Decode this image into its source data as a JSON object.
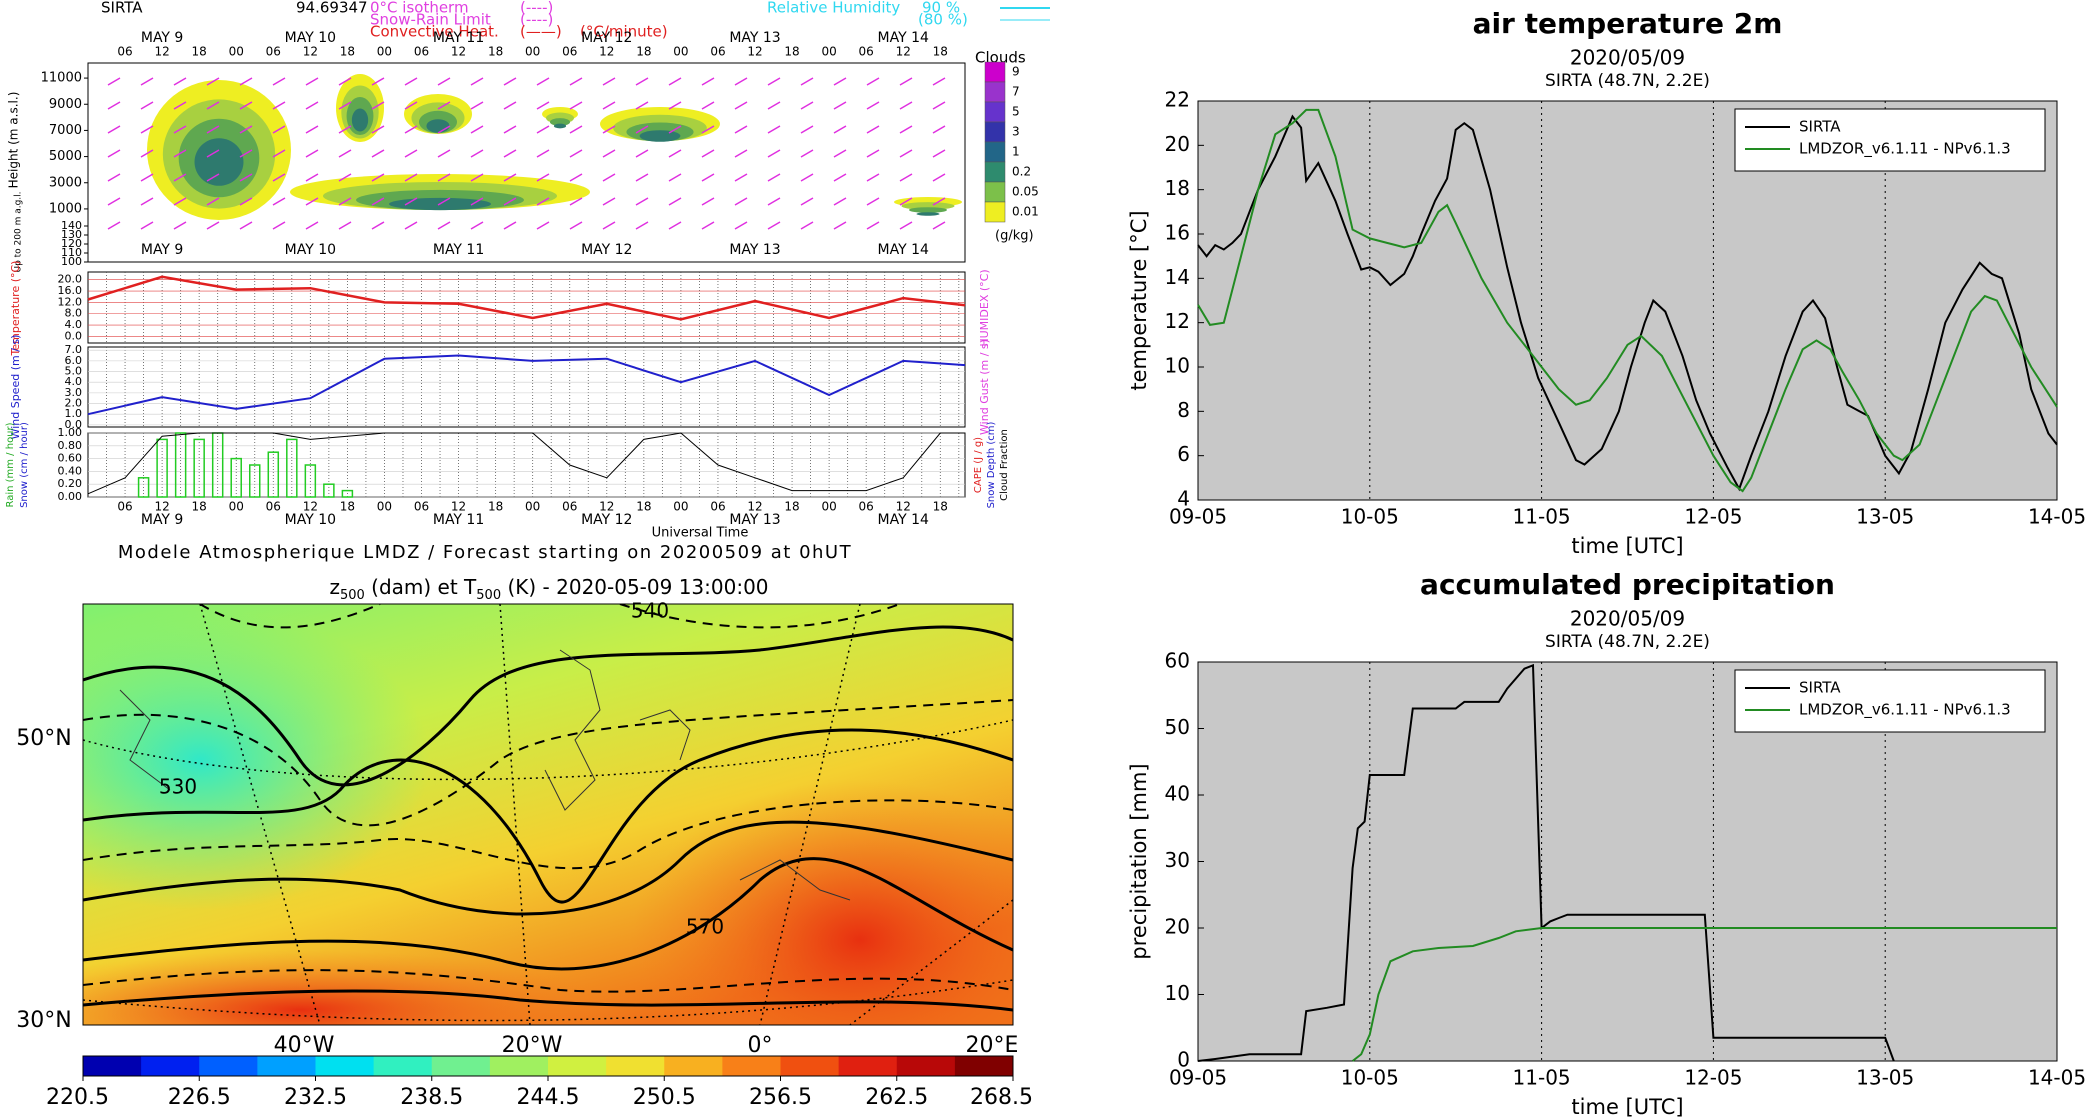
{
  "meteogram": {
    "station": "SIRTA",
    "code": "94.69347",
    "legend": [
      "0°C isotherm",
      "Snow-Rain Limit",
      "Convective Heat."
    ],
    "legend_marks": [
      "(----)",
      "(----)",
      "(——)"
    ],
    "legend_unit": "(°C/minute)",
    "humidity": "Relative Humidity",
    "humidity_levels": [
      "90 %",
      "(80 %)"
    ],
    "days": [
      "MAY 9",
      "MAY 10",
      "MAY 11",
      "MAY 12",
      "MAY 13",
      "MAY 14"
    ],
    "hours": [
      "06",
      "12",
      "18",
      "00"
    ],
    "xlim": [
      0,
      142
    ],
    "height_label": "Height (m a.s.l.)",
    "low_label": "Up to 200 m a.g.l.",
    "height_lim": [
      0,
      12000
    ],
    "height_ticks": [
      11000,
      9000,
      7000,
      5000,
      3000,
      1000
    ],
    "low_lim": [
      100,
      140
    ],
    "low_ticks": [
      140,
      130,
      120,
      110,
      100
    ],
    "clouds_title": "Clouds",
    "clouds_unit": "(g/kg)",
    "cloud_levels": [
      "9",
      "7",
      "5",
      "3",
      "1",
      "0.2",
      "0.05",
      "0.01"
    ],
    "cloud_colors": [
      "#cc00cc",
      "#9933cc",
      "#6633cc",
      "#3333aa",
      "#226688",
      "#2e8b6e",
      "#7cc04a",
      "#eeee22"
    ],
    "temperature": {
      "label": "Temperature (°C)",
      "label2": "HUMIDEX (°C)",
      "color": "#e02020",
      "ylim": [
        -2.3,
        22.7
      ],
      "yticks": [
        {
          "value": 0,
          "label": "0.0"
        },
        {
          "value": 4,
          "label": "4.0"
        },
        {
          "value": 8,
          "label": "8.0"
        },
        {
          "value": 12,
          "label": "12.0"
        },
        {
          "value": 16,
          "label": "16.0"
        },
        {
          "value": 20,
          "label": "20.0"
        }
      ],
      "x": [
        0,
        12,
        24,
        36,
        48,
        60,
        72,
        84,
        96,
        108,
        120,
        132,
        142
      ],
      "values": [
        13,
        21,
        16.5,
        17,
        12,
        11.5,
        6.5,
        11.5,
        6,
        12.5,
        6.5,
        13.5,
        11
      ]
    },
    "wind": {
      "label": "Wind Speed (m / s)",
      "label2": "Wind Gust (m / s)",
      "color": "#2020cc",
      "ylim": [
        -0.2,
        7.3
      ],
      "yticks": [
        {
          "value": 0,
          "label": "0.0"
        },
        {
          "value": 1,
          "label": "1.0"
        },
        {
          "value": 2,
          "label": "2.0"
        },
        {
          "value": 3,
          "label": "3.0"
        },
        {
          "value": 4,
          "label": "4.0"
        },
        {
          "value": 5,
          "label": "5.0"
        },
        {
          "value": 6,
          "label": "6.0"
        },
        {
          "value": 7,
          "label": "7.0"
        }
      ],
      "x": [
        0,
        12,
        24,
        36,
        48,
        60,
        72,
        84,
        96,
        108,
        120,
        132,
        142
      ],
      "values": [
        1,
        2.6,
        1.5,
        2.5,
        6.2,
        6.5,
        6,
        6.2,
        4,
        6,
        2.8,
        6,
        5.6
      ]
    },
    "precip": {
      "label": "Rain (mm / hour)",
      "label2": "Snow (cm / hour)",
      "label3": "CAPE (J / g)",
      "label4": "Snow Depth (cm)",
      "label5": "Cloud Fraction",
      "ylim": [
        0,
        1
      ],
      "yticks": [
        {
          "value": 0,
          "label": "0.00"
        },
        {
          "value": 0.2,
          "label": "0.20"
        },
        {
          "value": 0.4,
          "label": "0.40"
        },
        {
          "value": 0.6,
          "label": "0.60"
        },
        {
          "value": 0.8,
          "label": "0.80"
        },
        {
          "value": 1,
          "label": "1.00"
        }
      ],
      "rain_color": "#22cc22",
      "rain_x": [
        9,
        12,
        15,
        18,
        21,
        24,
        27,
        30,
        33,
        36,
        39,
        42
      ],
      "rain": [
        0.3,
        0.9,
        1,
        0.9,
        1,
        0.6,
        0.5,
        0.7,
        0.9,
        0.5,
        0.2,
        0.1
      ],
      "cloud_x": [
        0,
        6,
        12,
        18,
        24,
        30,
        36,
        42,
        48,
        54,
        60,
        66,
        72,
        78,
        84,
        90,
        96,
        102,
        108,
        114,
        120,
        126,
        132,
        138,
        142
      ],
      "cloud": [
        0.05,
        0.3,
        0.95,
        1,
        1,
        1,
        0.9,
        0.95,
        1,
        1,
        1,
        1,
        1,
        0.5,
        0.3,
        0.9,
        1,
        0.5,
        0.3,
        0.1,
        0.1,
        0.1,
        0.3,
        1,
        1
      ]
    },
    "xlabel": "Universal Time",
    "footer": "Modele Atmospherique LMDZ / Forecast starting on 20200509 at 0hUT"
  },
  "map": {
    "title": [
      "z",
      "500",
      " (dam) et T",
      "500",
      " (K) - 2020-05-09 13:00:00"
    ],
    "lat_labels": [
      "50°N",
      "30°N"
    ],
    "lon_labels": [
      "40°W",
      "20°W",
      "0°",
      "20°E"
    ],
    "contour_labels": [
      "540",
      "530",
      "570"
    ],
    "clim": [
      220.5,
      268.5
    ],
    "cticks": [
      220.5,
      226.5,
      232.5,
      238.5,
      244.5,
      250.5,
      256.5,
      262.5,
      268.5
    ],
    "colors": [
      "#0000b0",
      "#0020f0",
      "#0060ff",
      "#00a0ff",
      "#00e0f0",
      "#30f0c0",
      "#70f090",
      "#a0f060",
      "#d0f040",
      "#f0e030",
      "#f8b020",
      "#f88018",
      "#f05010",
      "#e02010",
      "#b80808",
      "#800000"
    ]
  },
  "chart_data": [
    {
      "type": "line",
      "title": "air temperature 2m",
      "subtitle": "2020/05/09",
      "location": "SIRTA (48.7N, 2.2E)",
      "xlabel": "time [UTC]",
      "ylabel": "temperature [°C]",
      "xlim": [
        0,
        5
      ],
      "xticks": [
        {
          "value": 0,
          "label": "09-05"
        },
        {
          "value": 1,
          "label": "10-05"
        },
        {
          "value": 2,
          "label": "11-05"
        },
        {
          "value": 3,
          "label": "12-05"
        },
        {
          "value": 4,
          "label": "13-05"
        },
        {
          "value": 5,
          "label": "14-05"
        }
      ],
      "ylim": [
        4,
        22
      ],
      "yticks": [
        4,
        6,
        8,
        10,
        12,
        14,
        16,
        18,
        20,
        22
      ],
      "grid": "x",
      "legend": "upper right",
      "background": "#c8c8c8",
      "series": [
        {
          "name": "SIRTA",
          "color": "#000000",
          "x": [
            0,
            0.05,
            0.1,
            0.15,
            0.2,
            0.25,
            0.35,
            0.45,
            0.55,
            0.6,
            0.63,
            0.7,
            0.8,
            0.87,
            0.95,
            1.0,
            1.05,
            1.12,
            1.2,
            1.25,
            1.3,
            1.38,
            1.45,
            1.5,
            1.55,
            1.6,
            1.7,
            1.8,
            1.88,
            1.98,
            2.1,
            2.2,
            2.25,
            2.35,
            2.45,
            2.52,
            2.6,
            2.65,
            2.72,
            2.82,
            2.9,
            2.98,
            3.08,
            3.15,
            3.22,
            3.32,
            3.42,
            3.52,
            3.58,
            3.65,
            3.72,
            3.78,
            3.85,
            3.9,
            4.0,
            4.08,
            4.15,
            4.25,
            4.35,
            4.45,
            4.55,
            4.62,
            4.68,
            4.78,
            4.85,
            4.95,
            5.0
          ],
          "values": [
            15.5,
            15,
            15.5,
            15.3,
            15.6,
            16,
            18,
            19.5,
            21.3,
            20.8,
            18.4,
            19.2,
            17.5,
            16,
            14.4,
            14.5,
            14.3,
            13.7,
            14.2,
            15,
            16,
            17.5,
            18.5,
            20.7,
            21,
            20.7,
            18,
            14.5,
            12,
            9.5,
            7.5,
            5.8,
            5.6,
            6.3,
            8,
            10,
            12,
            13,
            12.5,
            10.5,
            8.5,
            7,
            5.5,
            4.5,
            6,
            8,
            10.5,
            12.5,
            13,
            12.2,
            10,
            8.3,
            8,
            7.8,
            6,
            5.2,
            6.2,
            9,
            12,
            13.5,
            14.7,
            14.2,
            14,
            11.5,
            9,
            7,
            6.5
          ]
        },
        {
          "name": "LMDZOR_v6.1.11 - NPv6.1.3",
          "color": "#228b22",
          "x": [
            0,
            0.07,
            0.15,
            0.25,
            0.35,
            0.45,
            0.55,
            0.63,
            0.7,
            0.8,
            0.9,
            1.0,
            1.1,
            1.2,
            1.3,
            1.4,
            1.45,
            1.5,
            1.65,
            1.8,
            1.9,
            2.0,
            2.1,
            2.2,
            2.28,
            2.38,
            2.5,
            2.58,
            2.7,
            2.8,
            2.9,
            3.0,
            3.1,
            3.17,
            3.22,
            3.32,
            3.42,
            3.52,
            3.6,
            3.68,
            3.75,
            3.85,
            3.95,
            4.05,
            4.1,
            4.2,
            4.3,
            4.4,
            4.5,
            4.58,
            4.65,
            4.75,
            4.85,
            5.0
          ],
          "values": [
            12.8,
            11.9,
            12,
            15,
            18,
            20.5,
            21,
            21.6,
            21.6,
            19.5,
            16.2,
            15.8,
            15.6,
            15.4,
            15.6,
            17,
            17.3,
            16.5,
            14,
            12,
            11,
            10,
            9,
            8.3,
            8.5,
            9.5,
            11,
            11.4,
            10.5,
            9,
            7.5,
            6,
            4.8,
            4.4,
            5,
            7,
            9,
            10.8,
            11.2,
            10.8,
            9.8,
            8.5,
            7,
            6,
            5.8,
            6.5,
            8.5,
            10.5,
            12.5,
            13.2,
            13,
            11.5,
            10,
            8.2
          ]
        }
      ]
    },
    {
      "type": "line",
      "title": "accumulated precipitation",
      "subtitle": "2020/05/09",
      "location": "SIRTA (48.7N, 2.2E)",
      "xlabel": "time [UTC]",
      "ylabel": "precipitation [mm]",
      "xlim": [
        0,
        5
      ],
      "xticks": [
        {
          "value": 0,
          "label": "09-05"
        },
        {
          "value": 1,
          "label": "10-05"
        },
        {
          "value": 2,
          "label": "11-05"
        },
        {
          "value": 3,
          "label": "12-05"
        },
        {
          "value": 4,
          "label": "13-05"
        },
        {
          "value": 5,
          "label": "14-05"
        }
      ],
      "ylim": [
        0,
        60
      ],
      "yticks": [
        0,
        10,
        20,
        30,
        40,
        50,
        60
      ],
      "grid": "x",
      "legend": "upper right",
      "background": "#c8c8c8",
      "series": [
        {
          "name": "SIRTA",
          "color": "#000000",
          "x": [
            0,
            0.1,
            0.3,
            0.6,
            0.63,
            0.75,
            0.85,
            0.9,
            0.93,
            0.97,
            1.0,
            1.2,
            1.25,
            1.5,
            1.55,
            1.75,
            1.8,
            1.9,
            1.95,
            2.0,
            2.05,
            2.1,
            2.15,
            2.95,
            3.0,
            4.0,
            4.05
          ],
          "values": [
            0,
            0.3,
            1,
            1,
            7.5,
            8,
            8.5,
            29,
            35,
            36,
            43,
            43,
            53,
            53,
            54,
            54,
            56,
            59,
            59.5,
            20,
            21,
            21.5,
            22,
            22,
            3.5,
            3.5,
            0
          ]
        },
        {
          "name": "LMDZOR_v6.1.11 - NPv6.1.3",
          "color": "#228b22",
          "x": [
            0.9,
            0.95,
            1.0,
            1.05,
            1.12,
            1.25,
            1.4,
            1.6,
            1.75,
            1.85,
            2.0,
            5.0
          ],
          "values": [
            0,
            1,
            4,
            10,
            15,
            16.5,
            17,
            17.3,
            18.5,
            19.5,
            20,
            20
          ]
        }
      ]
    }
  ]
}
